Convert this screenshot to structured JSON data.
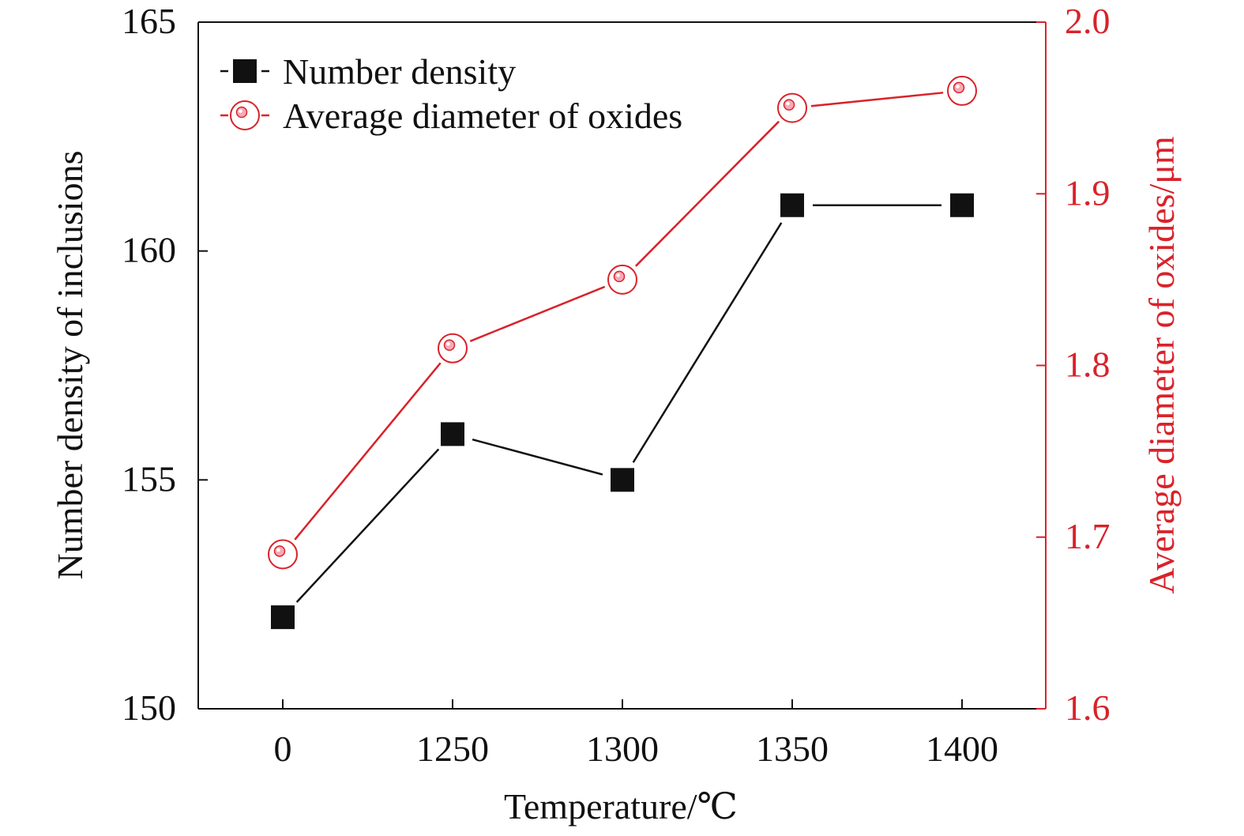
{
  "chart_data": {
    "type": "line",
    "title": "",
    "xlabel": "Temperature/℃",
    "ylabel": "Number density of inclusions",
    "y2label": "Average diameter of oxides/μm",
    "categories": [
      "0",
      "1250",
      "1300",
      "1350",
      "1400"
    ],
    "ylim": [
      150,
      165
    ],
    "y2lim": [
      1.6,
      2.0
    ],
    "yticks": [
      "150",
      "155",
      "160",
      "165"
    ],
    "y2ticks": [
      "1.6",
      "1.7",
      "1.8",
      "1.9",
      "2.0"
    ],
    "grid": false,
    "legend_position": "top-left",
    "series": [
      {
        "name": "Number density",
        "axis": "left",
        "marker": "square",
        "color": "#111111",
        "values": [
          152,
          156,
          155,
          161,
          161
        ]
      },
      {
        "name": "Average diameter of oxides",
        "axis": "right",
        "marker": "circle",
        "color": "#d9222a",
        "values": [
          1.69,
          1.81,
          1.85,
          1.95,
          1.96
        ]
      }
    ]
  }
}
